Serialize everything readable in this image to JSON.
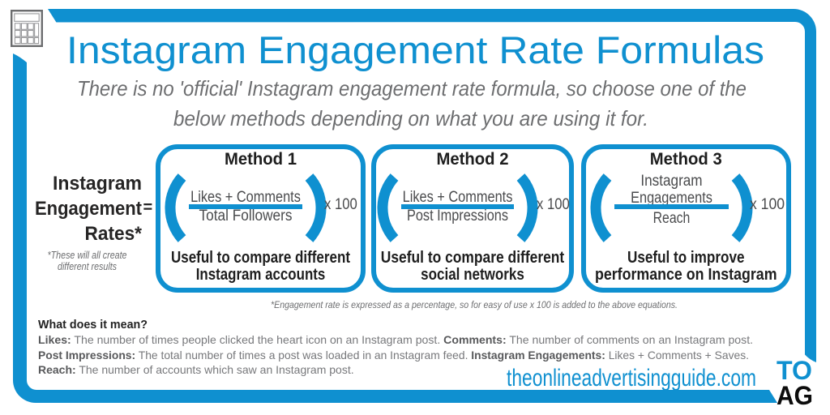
{
  "colors": {
    "blue": "#0f90d0",
    "dark": "#1e1e1e",
    "gray": "#6d6e70",
    "formula_text": "#4a4b4d"
  },
  "header": {
    "title": "Instagram Engagement Rate Formulas",
    "subtitle_line1": "There is no 'official' Instagram engagement rate formula, so choose one of the",
    "subtitle_line2": "below methods depending on what you are using it for."
  },
  "equation_label": {
    "line1": "Instagram",
    "line2": "Engagement",
    "equals": "=",
    "line3": "Rates*",
    "note_line1": "*These will all create",
    "note_line2": "different results"
  },
  "methods": [
    {
      "title": "Method 1",
      "numerator": "Likes + Comments",
      "denominator": "Total Followers",
      "multiplier": "x 100",
      "caption_line1": "Useful to compare different",
      "caption_line2": "Instagram accounts"
    },
    {
      "title": "Method 2",
      "numerator": "Likes + Comments",
      "denominator": "Post Impressions",
      "multiplier": "x 100",
      "caption_line1": "Useful to compare different",
      "caption_line2": "social networks"
    },
    {
      "title": "Method 3",
      "numerator_line1": "Instagram",
      "numerator_line2": "Engagements",
      "denominator": "Reach",
      "multiplier": "x 100",
      "caption_line1": "Useful to improve",
      "caption_line2": "performance on Instagram"
    }
  ],
  "footnote": "*Engagement rate is expressed as a percentage, so for easy of use x 100 is added to the above equations.",
  "glossary": {
    "heading": "What does it mean?",
    "lines": [
      [
        {
          "t": "Likes:",
          "b": true
        },
        {
          "t": " The number of times people clicked the heart icon on an Instagram post. ",
          "b": false
        },
        {
          "t": "Comments:",
          "b": true
        },
        {
          "t": " The number of comments on an Instagram post.",
          "b": false
        }
      ],
      [
        {
          "t": "Post Impressions:",
          "b": true
        },
        {
          "t": " The total number of times a post was loaded in an Instagram feed. ",
          "b": false
        },
        {
          "t": "Instagram Engagements:",
          "b": true
        },
        {
          "t": " Likes + Comments + Saves.",
          "b": false
        }
      ],
      [
        {
          "t": "Reach:",
          "b": true
        },
        {
          "t": " The number of accounts which saw an Instagram post.",
          "b": false
        }
      ]
    ]
  },
  "footer": {
    "website": "theonlineadvertisingguide.com",
    "logo_line1": "TO",
    "logo_line2": "AG"
  },
  "icons": {
    "calculator": "calculator-icon",
    "open_paren": "open-paren-icon",
    "close_paren": "close-paren-icon"
  }
}
